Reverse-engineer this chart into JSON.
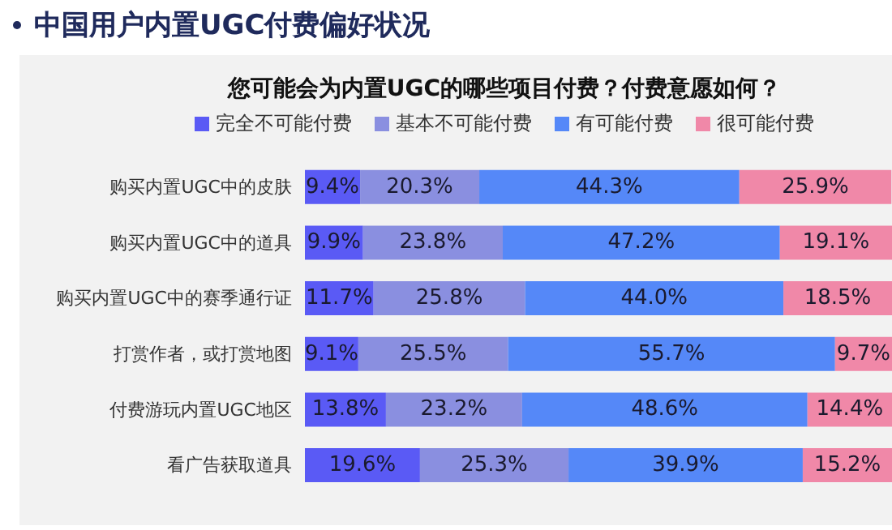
{
  "chart_data": {
    "type": "bar",
    "orientation": "horizontal",
    "stacked": true,
    "title": "中国用户内置UGC付费偏好状况",
    "subtitle": "您可能会为内置UGC的哪些项目付费？付费意愿如何？",
    "categories": [
      "购买内置UGC中的皮肤",
      "购买内置UGC中的道具",
      "购买内置UGC中的赛季通行证",
      "打赏作者，或打赏地图",
      "付费游玩内置UGC地区",
      "看广告获取道具"
    ],
    "series": [
      {
        "name": "完全不可能付费",
        "color": "#5a5af5",
        "values": [
          9.4,
          9.9,
          11.7,
          9.1,
          13.8,
          19.6
        ],
        "value_labels": [
          "9.4%",
          "9.9%",
          "11.7%",
          "9.1%",
          "13.8%",
          "19.6%"
        ]
      },
      {
        "name": "基本不可能付费",
        "color": "#8a8fe0",
        "values": [
          20.3,
          23.8,
          25.8,
          25.5,
          23.2,
          25.3
        ],
        "value_labels": [
          "20.3%",
          "23.8%",
          "25.8%",
          "25.5%",
          "23.2%",
          "25.3%"
        ]
      },
      {
        "name": "有可能付费",
        "color": "#5588f8",
        "values": [
          44.3,
          47.2,
          44.0,
          55.7,
          48.6,
          39.9
        ],
        "value_labels": [
          "44.3%",
          "47.2%",
          "44.0%",
          "55.7%",
          "48.6%",
          "39.9%"
        ]
      },
      {
        "name": "很可能付费",
        "color": "#f088a8",
        "values": [
          25.9,
          19.1,
          18.5,
          9.7,
          14.4,
          15.2
        ],
        "value_labels": [
          "25.9%",
          "19.1%",
          "18.5%",
          "9.7%",
          "14.4%",
          "15.2%"
        ]
      }
    ],
    "xlim": [
      0,
      100
    ],
    "tick_labels": false,
    "legend": "top",
    "grid": false
  }
}
